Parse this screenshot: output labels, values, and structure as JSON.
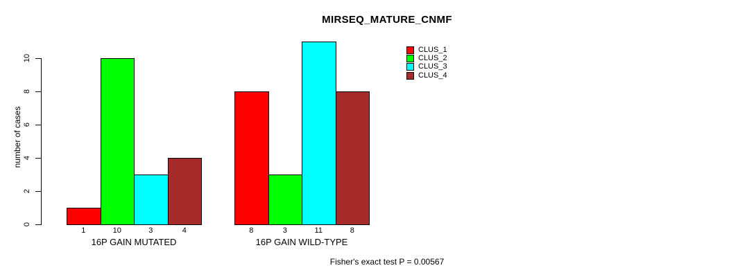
{
  "chart_data": {
    "type": "bar",
    "title": "MIRSEQ_MATURE_CNMF",
    "ylabel": "number of cases",
    "xlabel": "",
    "categories": [
      "16P GAIN MUTATED",
      "16P GAIN WILD-TYPE"
    ],
    "series": [
      {
        "name": "CLUS_1",
        "color": "#ff0000",
        "values": [
          1,
          8
        ]
      },
      {
        "name": "CLUS_2",
        "color": "#00ff00",
        "values": [
          10,
          3
        ]
      },
      {
        "name": "CLUS_3",
        "color": "#00ffff",
        "values": [
          3,
          11
        ]
      },
      {
        "name": "CLUS_4",
        "color": "#a52a2a",
        "values": [
          4,
          8
        ]
      }
    ],
    "ylim": [
      0,
      11
    ],
    "yticks": [
      0,
      2,
      4,
      6,
      8,
      10
    ],
    "grid": false,
    "legend_position": "top-right",
    "bar_value_labels": true,
    "annotation": "Fisher's exact test P = 0.00567"
  }
}
